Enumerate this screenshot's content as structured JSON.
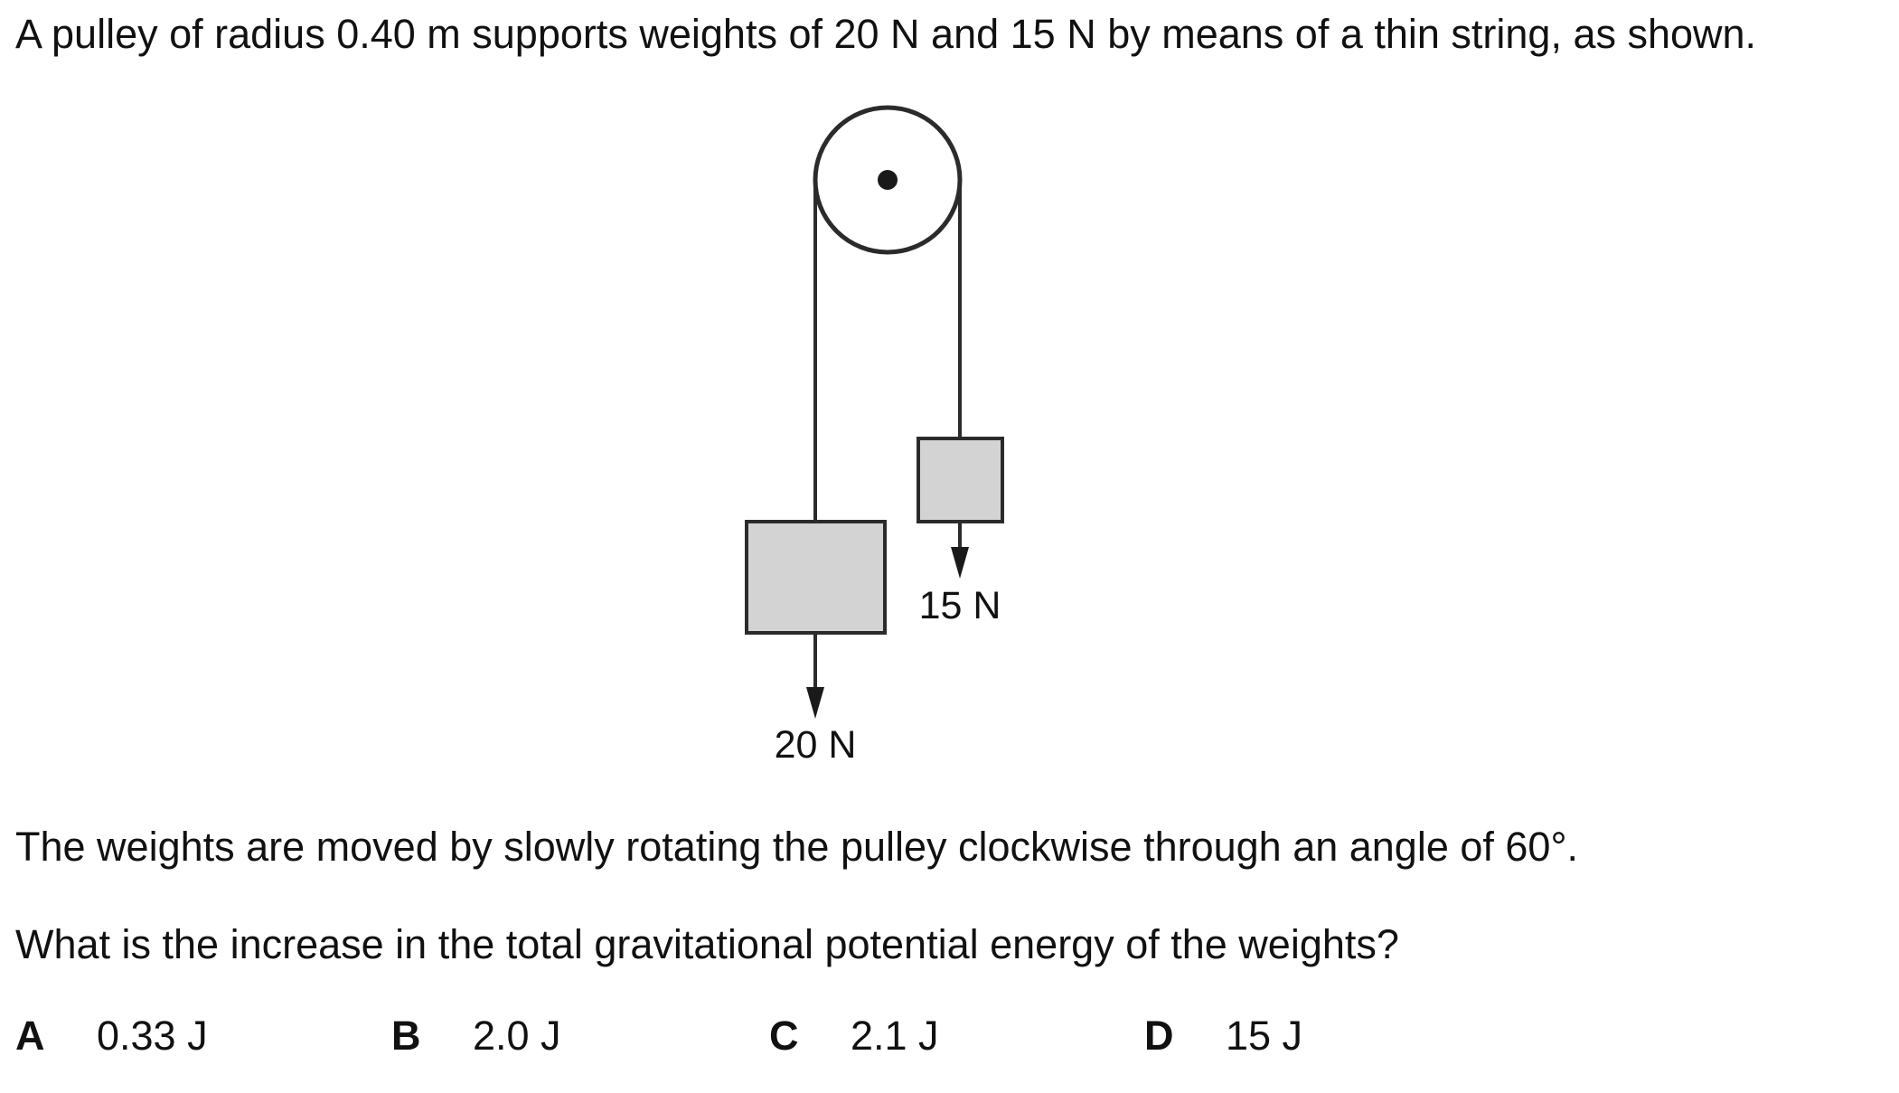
{
  "question": {
    "intro": "A pulley of radius 0.40 m supports weights of 20 N and 15 N by means of a thin string, as shown.",
    "instruction": "The weights are moved by slowly rotating the pulley clockwise through an angle of 60°.",
    "prompt": "What is the increase in the total gravitational potential energy of the weights?"
  },
  "diagram": {
    "heavy_weight_label": "20 N",
    "light_weight_label": "15 N",
    "block_fill": "#d3d3d3",
    "stroke_color": "#2b2b2b"
  },
  "options": [
    {
      "letter": "A",
      "value": "0.33 J"
    },
    {
      "letter": "B",
      "value": "2.0 J"
    },
    {
      "letter": "C",
      "value": "2.1 J"
    },
    {
      "letter": "D",
      "value": "15 J"
    }
  ]
}
